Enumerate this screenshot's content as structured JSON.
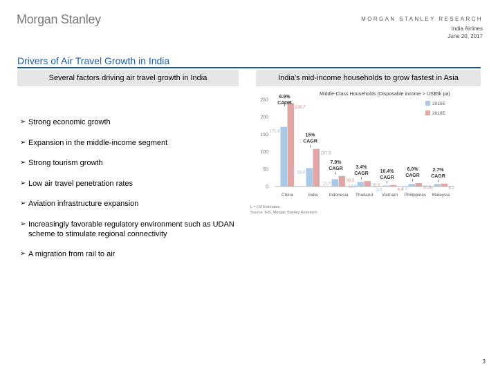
{
  "header": {
    "logo": "Morgan Stanley",
    "research_label": "MORGAN STANLEY RESEARCH",
    "subtitle_company": "India Airlines",
    "subtitle_date": "June 20, 2017"
  },
  "title": "Drivers of Air Travel Growth in India",
  "left_panel": {
    "heading": "Several factors driving air travel growth in India",
    "bullets": [
      "Strong economic growth",
      "Expansion in the middle-income segment",
      "Strong tourism growth",
      "Low air travel penetration rates",
      "Aviation infrastructure expansion",
      "Increasingly favorable regulatory environment such as UDAN scheme to stimulate regional connectivity",
      "A migration from rail to air"
    ]
  },
  "right_panel": {
    "heading": "India's mid-income households to grow fastest in Asia"
  },
  "chart_data": {
    "type": "bar",
    "title": "Middle-Class Households (Disposable income > US$5k pa)",
    "categories": [
      "China",
      "India",
      "Indonesia",
      "Thailand",
      "Vietnam",
      "Philippines",
      "Malaysia"
    ],
    "series": [
      {
        "name": "2015E",
        "values": [
          171.4,
          53.0,
          21.0,
          13.0,
          3.0,
          7.0,
          7.0
        ],
        "color": "#a9c9e6"
      },
      {
        "name": "2019E",
        "values": [
          239.7,
          107.9,
          30.2,
          15.5,
          4.4,
          10.0,
          8.2
        ],
        "color": "#e0a5a5"
      }
    ],
    "bar_labels": [
      {
        "s2015": "171.4",
        "s2019": "239.7"
      },
      {
        "s2015": "53.0",
        "s2019": "107.9"
      },
      {
        "s2015": "21.0",
        "s2019": "30.2"
      },
      {
        "s2015": "13.0",
        "s2019": "15.5"
      },
      {
        "s2015": "3.0",
        "s2019": "4.4"
      },
      {
        "s2015": "7.0",
        "s2019": "10.0"
      },
      {
        "s2015": "7.0",
        "s2019": "8.2"
      }
    ],
    "cagr": [
      "6.9%",
      "15%",
      "7.9%",
      "3.4%",
      "10.4%",
      "6.0%",
      "2.7%"
    ],
    "cagr_word": "CAGR",
    "yticks": [
      0,
      50,
      100,
      150,
      200,
      250
    ],
    "ylim": [
      0,
      250
    ],
    "footnote": "L = LM Estimates",
    "source": "Source: IHS, Morgan Stanley Research"
  },
  "page_number": "3"
}
